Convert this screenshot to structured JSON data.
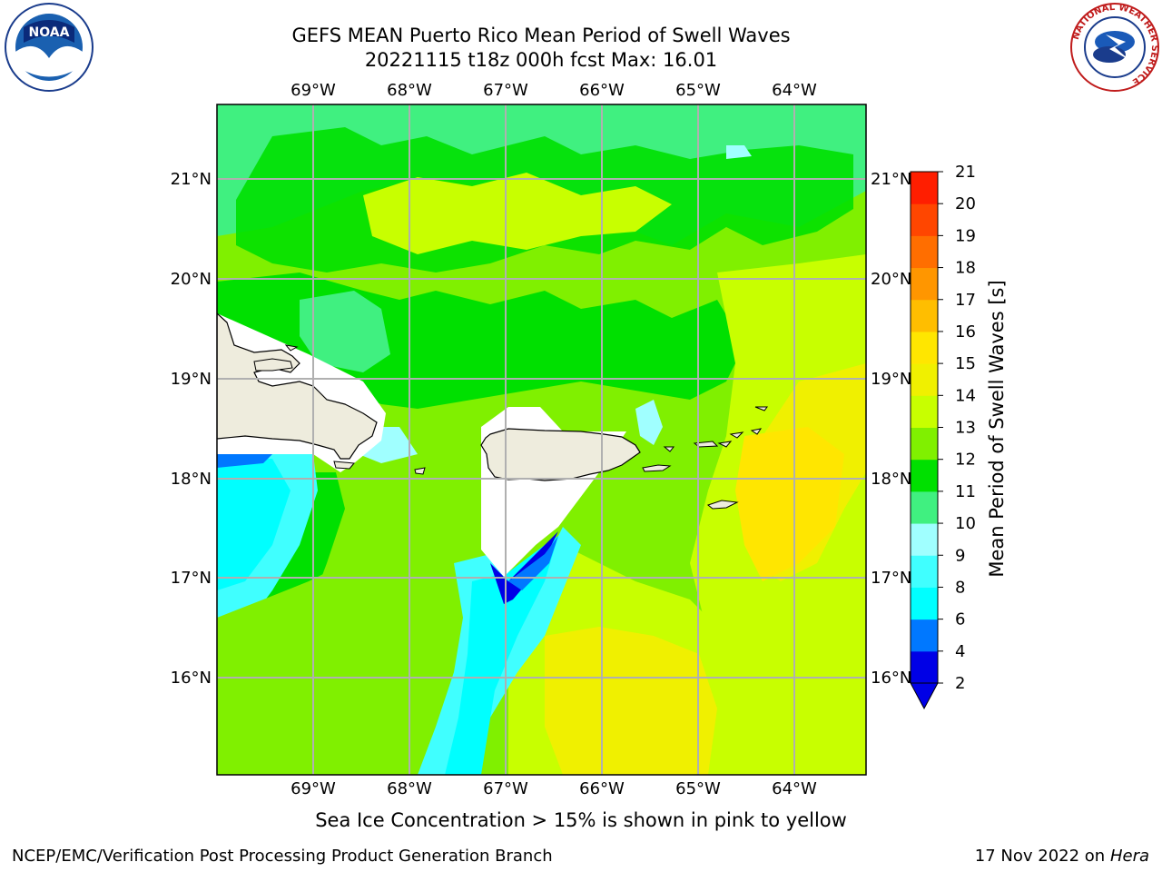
{
  "title": {
    "line1": "GEFS MEAN Puerto Rico Mean Period of Swell Waves",
    "line2": "20221115 t18z 000h fcst   Max: 16.01"
  },
  "map": {
    "lon_range": [
      -70.0,
      -63.25
    ],
    "lat_range": [
      15.0,
      21.75
    ],
    "lon_ticks": [
      "69°W",
      "68°W",
      "67°W",
      "66°W",
      "65°W",
      "64°W"
    ],
    "lat_ticks": [
      "21°N",
      "20°N",
      "19°N",
      "18°N",
      "17°N",
      "16°N"
    ],
    "grid": true,
    "land_color": "#eeecdd",
    "missing_color": "#ffffff",
    "coastline_color": "#000000"
  },
  "colorbar": {
    "label": "Mean Period of Swell Waves [s]",
    "tick_labels": [
      "2",
      "4",
      "6",
      "8",
      "9",
      "10",
      "11",
      "12",
      "13",
      "14",
      "15",
      "16",
      "17",
      "18",
      "19",
      "20",
      "21"
    ],
    "levels": [
      2,
      4,
      6,
      8,
      9,
      10,
      11,
      12,
      13,
      14,
      15,
      16,
      17,
      18,
      19,
      20,
      21
    ],
    "colors": [
      "#0000e6",
      "#0078ff",
      "#00ffff",
      "#40ffff",
      "#a0ffff",
      "#40f080",
      "#00e000",
      "#80f000",
      "#c8ff00",
      "#f0f000",
      "#ffe600",
      "#ffbe00",
      "#ff9600",
      "#ff6e00",
      "#ff4600",
      "#ff1e00"
    ],
    "under_color": "#0000e6",
    "extend": "min"
  },
  "footer": {
    "note": "Sea Ice Concentration > 15% is shown in pink to yellow",
    "credit": "NCEP/EMC/Verification Post Processing Product Generation Branch",
    "date": "17 Nov 2022 on",
    "host": "Hera"
  },
  "logos": {
    "noaa": "NOAA",
    "nws": "NATIONAL WEATHER SERVICE"
  }
}
